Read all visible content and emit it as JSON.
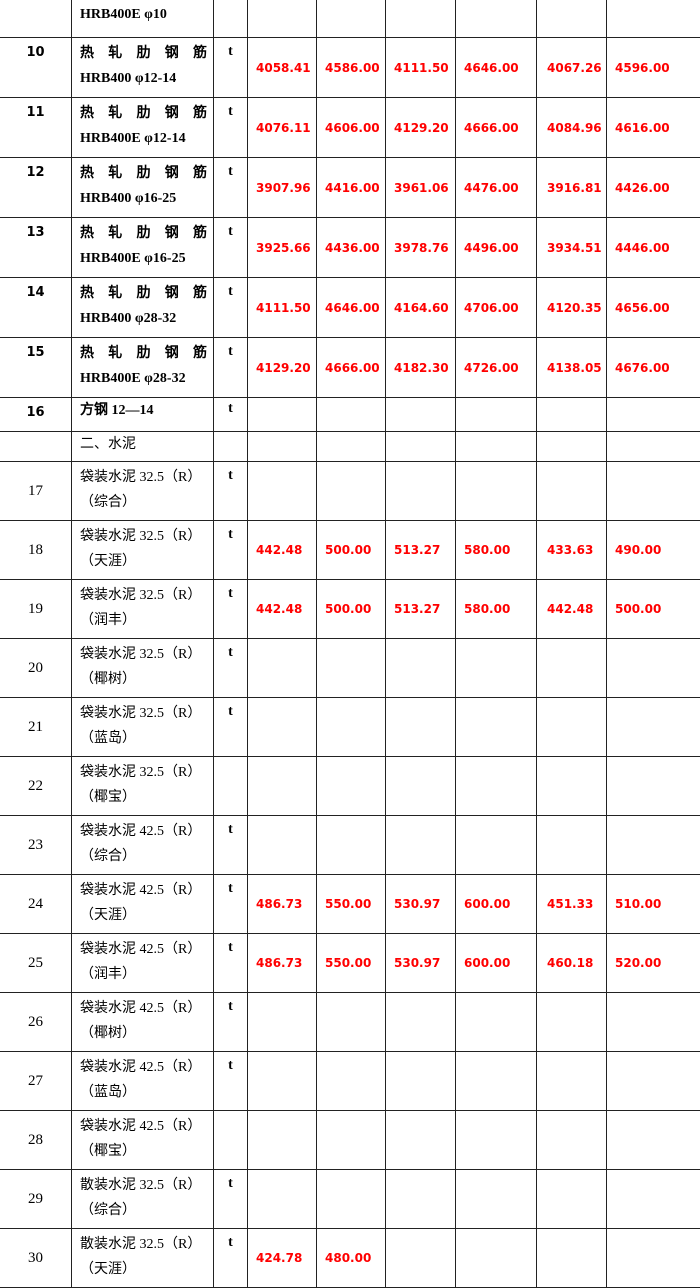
{
  "accent_color": "#ff0000",
  "rows": [
    {
      "no": "",
      "name": [
        "HRB400E φ10"
      ],
      "unit": "",
      "values": [],
      "style": "steel",
      "partial": true
    },
    {
      "no": "10",
      "name": [
        "热轧肋钢筋",
        "HRB400 φ12-14"
      ],
      "unit": "t",
      "values": [
        "4058.41",
        "4586.00",
        "4111.50",
        "4646.00",
        "4067.26",
        "4596.00"
      ],
      "style": "steel"
    },
    {
      "no": "11",
      "name": [
        "热轧肋钢筋",
        "HRB400E φ12-14"
      ],
      "unit": "t",
      "values": [
        "4076.11",
        "4606.00",
        "4129.20",
        "4666.00",
        "4084.96",
        "4616.00"
      ],
      "style": "steel"
    },
    {
      "no": "12",
      "name": [
        "热轧肋钢筋",
        "HRB400 φ16-25"
      ],
      "unit": "t",
      "values": [
        "3907.96",
        "4416.00",
        "3961.06",
        "4476.00",
        "3916.81",
        "4426.00"
      ],
      "style": "steel"
    },
    {
      "no": "13",
      "name": [
        "热轧肋钢筋",
        "HRB400E φ16-25"
      ],
      "unit": "t",
      "values": [
        "3925.66",
        "4436.00",
        "3978.76",
        "4496.00",
        "3934.51",
        "4446.00"
      ],
      "style": "steel"
    },
    {
      "no": "14",
      "name": [
        "热轧肋钢筋",
        "HRB400 φ28-32"
      ],
      "unit": "t",
      "values": [
        "4111.50",
        "4646.00",
        "4164.60",
        "4706.00",
        "4120.35",
        "4656.00"
      ],
      "style": "steel"
    },
    {
      "no": "15",
      "name": [
        "热轧肋钢筋",
        "HRB400E φ28-32"
      ],
      "unit": "t",
      "values": [
        "4129.20",
        "4666.00",
        "4182.30",
        "4726.00",
        "4138.05",
        "4676.00"
      ],
      "style": "steel"
    },
    {
      "no": "16",
      "name": [
        "方钢 12—14"
      ],
      "unit": "t",
      "values": [],
      "style": "steel",
      "short": true
    },
    {
      "no": "",
      "name": [
        "二、水泥"
      ],
      "unit": "",
      "values": [],
      "style": "cement",
      "short": true
    },
    {
      "no": "17",
      "name": [
        "袋装水泥 32.5（R）",
        "（综合）"
      ],
      "unit": "t",
      "values": [],
      "style": "cement"
    },
    {
      "no": "18",
      "name": [
        "袋装水泥 32.5（R）",
        "（天涯）"
      ],
      "unit": "t",
      "values": [
        "442.48",
        "500.00",
        "513.27",
        "580.00",
        "433.63",
        "490.00"
      ],
      "style": "cement"
    },
    {
      "no": "19",
      "name": [
        "袋装水泥 32.5（R）",
        "（润丰）"
      ],
      "unit": "t",
      "values": [
        "442.48",
        "500.00",
        "513.27",
        "580.00",
        "442.48",
        "500.00"
      ],
      "style": "cement"
    },
    {
      "no": "20",
      "name": [
        "袋装水泥 32.5（R）",
        "（椰树）"
      ],
      "unit": "t",
      "values": [],
      "style": "cement"
    },
    {
      "no": "21",
      "name": [
        "袋装水泥 32.5（R）",
        "（蓝岛）"
      ],
      "unit": "t",
      "values": [],
      "style": "cement"
    },
    {
      "no": "22",
      "name": [
        "袋装水泥 32.5（R）",
        "（椰宝）"
      ],
      "unit": "",
      "values": [],
      "style": "cement"
    },
    {
      "no": "23",
      "name": [
        "袋装水泥 42.5（R）",
        "（综合）"
      ],
      "unit": "t",
      "values": [],
      "style": "cement"
    },
    {
      "no": "24",
      "name": [
        "袋装水泥 42.5（R）",
        "（天涯）"
      ],
      "unit": "t",
      "values": [
        "486.73",
        "550.00",
        "530.97",
        "600.00",
        "451.33",
        "510.00"
      ],
      "style": "cement"
    },
    {
      "no": "25",
      "name": [
        "袋装水泥 42.5（R）",
        "（润丰）"
      ],
      "unit": "t",
      "values": [
        "486.73",
        "550.00",
        "530.97",
        "600.00",
        "460.18",
        "520.00"
      ],
      "style": "cement"
    },
    {
      "no": "26",
      "name": [
        "袋装水泥 42.5（R）",
        "（椰树）"
      ],
      "unit": "t",
      "values": [],
      "style": "cement"
    },
    {
      "no": "27",
      "name": [
        "袋装水泥 42.5（R）",
        "（蓝岛）"
      ],
      "unit": "t",
      "values": [],
      "style": "cement"
    },
    {
      "no": "28",
      "name": [
        "袋装水泥 42.5（R）",
        "（椰宝）"
      ],
      "unit": "",
      "values": [],
      "style": "cement"
    },
    {
      "no": "29",
      "name": [
        "散装水泥 32.5（R）",
        "（综合）"
      ],
      "unit": "t",
      "values": [],
      "style": "cement"
    },
    {
      "no": "30",
      "name": [
        "散装水泥 32.5（R）",
        "（天涯）"
      ],
      "unit": "t",
      "values": [
        "424.78",
        "480.00"
      ],
      "style": "cement"
    }
  ]
}
